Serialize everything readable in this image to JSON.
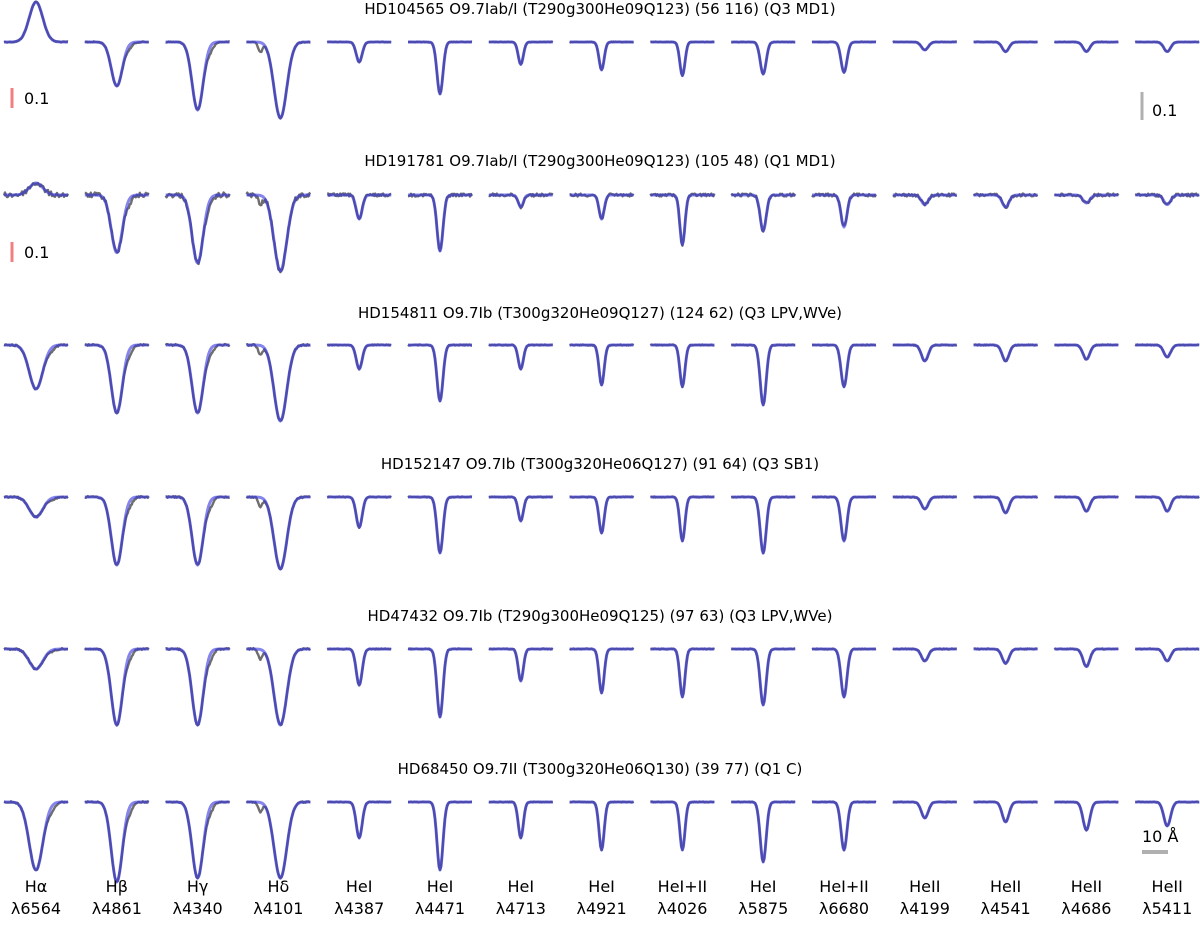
{
  "chart_data": {
    "type": "line",
    "rows": [
      {
        "title": "HD104565 O9.7Iab/I (T290g300He09Q123) (56 116) (Q3 MD1)",
        "noise": 0.25,
        "depths": [
          -0.5,
          0.55,
          0.85,
          0.95,
          0.25,
          0.65,
          0.28,
          0.35,
          0.42,
          0.4,
          0.38,
          0.1,
          0.12,
          0.12,
          0.12
        ]
      },
      {
        "title": "HD191781 O9.7Iab/I (T290g300He09Q123) (105 48) (Q1 MD1)",
        "noise": 1.0,
        "depths": [
          -0.15,
          0.72,
          0.85,
          0.95,
          0.3,
          0.7,
          0.15,
          0.3,
          0.62,
          0.45,
          0.4,
          0.12,
          0.15,
          0.1,
          0.12
        ]
      },
      {
        "title": "HD154811 O9.7Ib (T300g320He09Q127) (124 62) (Q3 LPV,WVe)",
        "noise": 0.35,
        "depths": [
          0.55,
          0.85,
          0.85,
          0.95,
          0.3,
          0.7,
          0.3,
          0.5,
          0.52,
          0.75,
          0.52,
          0.2,
          0.2,
          0.18,
          0.15
        ]
      },
      {
        "title": "HD152147 O9.7Ib (T300g320He06Q127) (91 64) (Q3 SB1)",
        "noise": 0.35,
        "depths": [
          0.25,
          0.85,
          0.85,
          0.9,
          0.38,
          0.7,
          0.3,
          0.45,
          0.55,
          0.7,
          0.55,
          0.15,
          0.2,
          0.18,
          0.18
        ]
      },
      {
        "title": "HD47432 O9.7Ib (T290g300He09Q125) (97 63) (Q3 LPV,WVe)",
        "noise": 0.35,
        "depths": [
          0.25,
          0.95,
          0.95,
          0.95,
          0.45,
          0.85,
          0.4,
          0.55,
          0.6,
          0.7,
          0.6,
          0.15,
          0.18,
          0.22,
          0.15
        ]
      },
      {
        "title": "HD68450 O9.7II (T300g320He06Q130) (39 77) (Q1 C)",
        "noise": 0.3,
        "depths": [
          0.85,
          1.0,
          0.95,
          0.95,
          0.45,
          0.85,
          0.45,
          0.6,
          0.6,
          0.75,
          0.6,
          0.2,
          0.25,
          0.35,
          0.3
        ]
      }
    ],
    "columns": [
      {
        "line": "Hα",
        "wavelength": "λ6564"
      },
      {
        "line": "Hβ",
        "wavelength": "λ4861"
      },
      {
        "line": "Hγ",
        "wavelength": "λ4340"
      },
      {
        "line": "Hδ",
        "wavelength": "λ4101"
      },
      {
        "line": "HeI",
        "wavelength": "λ4387"
      },
      {
        "line": "HeI",
        "wavelength": "λ4471"
      },
      {
        "line": "HeI",
        "wavelength": "λ4713"
      },
      {
        "line": "HeI",
        "wavelength": "λ4921"
      },
      {
        "line": "HeI+II",
        "wavelength": "λ4026"
      },
      {
        "line": "HeI",
        "wavelength": "λ5875"
      },
      {
        "line": "HeI+II",
        "wavelength": "λ6680"
      },
      {
        "line": "HeII",
        "wavelength": "λ4199"
      },
      {
        "line": "HeII",
        "wavelength": "λ4541"
      },
      {
        "line": "HeII",
        "wavelength": "λ4686"
      },
      {
        "line": "HeII",
        "wavelength": "λ5411"
      }
    ],
    "widths": [
      1.6,
      1.3,
      1.3,
      1.5,
      0.7,
      0.7,
      0.6,
      0.6,
      0.6,
      0.7,
      0.7,
      0.8,
      0.8,
      0.8,
      0.8
    ],
    "scale_bars": {
      "halpha_row1": "0.1",
      "halpha_row2": "0.1",
      "right_row1": "0.1",
      "wavelength": "10 Å"
    },
    "colors": {
      "observed": "#6e6e6e",
      "model": "#3333dd",
      "halpha_scale": "#f08080",
      "scale_bar": "#b0b0b0"
    }
  }
}
